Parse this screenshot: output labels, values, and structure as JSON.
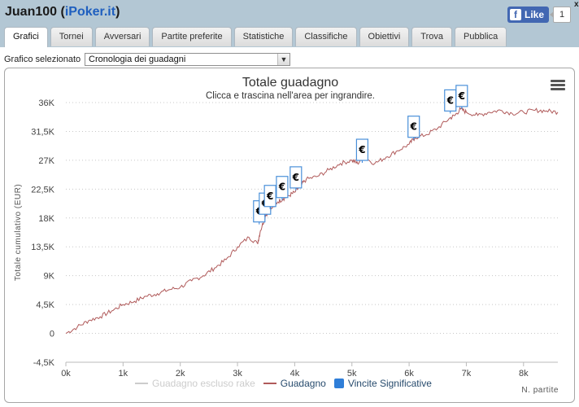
{
  "header": {
    "user": "Juan100",
    "site": "iPoker.it",
    "fb_like_label": "Like",
    "fb_like_count": "1",
    "close_label": "x"
  },
  "tabs": [
    {
      "label": "Grafici",
      "active": true
    },
    {
      "label": "Tornei"
    },
    {
      "label": "Avversari"
    },
    {
      "label": "Partite preferite"
    },
    {
      "label": "Statistiche"
    },
    {
      "label": "Classifiche"
    },
    {
      "label": "Obiettivi"
    },
    {
      "label": "Trova"
    },
    {
      "label": "Pubblica"
    }
  ],
  "selector": {
    "label": "Grafico selezionato",
    "value": "Cronologia dei guadagni"
  },
  "icons": {
    "menu": "hamburger-menu-icon",
    "flag": "euro-flag-icon",
    "dropdown": "chevron-down-icon",
    "facebook": "facebook-logo-icon"
  },
  "chart_data": {
    "type": "line",
    "title": "Totale guadagno",
    "subtitle": "Clicca e trascina nell'area per ingrandire.",
    "ylabel": "Totale cumulativo (EUR)",
    "xlabel": "N. partite",
    "xlim": [
      0,
      8600
    ],
    "ylim": [
      -4500,
      36000
    ],
    "x_ticks": [
      "0k",
      "1k",
      "2k",
      "3k",
      "4k",
      "5k",
      "6k",
      "7k",
      "8k"
    ],
    "y_ticks": [
      "36K",
      "31,5K",
      "27K",
      "22,5K",
      "18K",
      "13,5K",
      "9K",
      "4,5K",
      "0",
      "-4,5K"
    ],
    "grid": "horizontal dotted",
    "legend_position": "bottom",
    "series": [
      {
        "name": "Guadagno escluso rake",
        "visible": false,
        "color": "#cccccc",
        "points": []
      },
      {
        "name": "Guadagno",
        "visible": true,
        "color": "#b05a5a",
        "points": [
          [
            0,
            0
          ],
          [
            200,
            1000
          ],
          [
            400,
            2000
          ],
          [
            600,
            2600
          ],
          [
            800,
            3500
          ],
          [
            1000,
            4500
          ],
          [
            1200,
            5000
          ],
          [
            1400,
            5800
          ],
          [
            1600,
            6200
          ],
          [
            1800,
            6800
          ],
          [
            2000,
            7200
          ],
          [
            2200,
            8200
          ],
          [
            2400,
            9000
          ],
          [
            2600,
            10200
          ],
          [
            2800,
            11500
          ],
          [
            3000,
            13500
          ],
          [
            3200,
            15000
          ],
          [
            3350,
            14000
          ],
          [
            3400,
            16000
          ],
          [
            3500,
            18500
          ],
          [
            3600,
            19500
          ],
          [
            3700,
            20500
          ],
          [
            3800,
            21000
          ],
          [
            3900,
            21500
          ],
          [
            4000,
            22000
          ],
          [
            4100,
            23000
          ],
          [
            4200,
            24000
          ],
          [
            4400,
            24500
          ],
          [
            4600,
            25500
          ],
          [
            4800,
            26500
          ],
          [
            5000,
            27000
          ],
          [
            5100,
            26500
          ],
          [
            5200,
            27500
          ],
          [
            5400,
            26500
          ],
          [
            5600,
            27500
          ],
          [
            5800,
            28500
          ],
          [
            6000,
            29500
          ],
          [
            6100,
            30500
          ],
          [
            6300,
            31000
          ],
          [
            6500,
            32000
          ],
          [
            6700,
            33500
          ],
          [
            6800,
            34000
          ],
          [
            6900,
            35000
          ],
          [
            7000,
            34500
          ],
          [
            7200,
            34000
          ],
          [
            7400,
            34500
          ],
          [
            7600,
            34800
          ],
          [
            7800,
            34300
          ],
          [
            8000,
            34500
          ],
          [
            8200,
            34800
          ],
          [
            8400,
            34700
          ],
          [
            8600,
            34500
          ]
        ]
      },
      {
        "name": "Vincite Significative",
        "visible": true,
        "color": "#2f7ed8",
        "flags": [
          {
            "x": 3380,
            "y": 17000,
            "label": "€"
          },
          {
            "x": 3480,
            "y": 18200,
            "label": "€"
          },
          {
            "x": 3570,
            "y": 19400,
            "label": "€"
          },
          {
            "x": 3780,
            "y": 20800,
            "label": "€"
          },
          {
            "x": 4020,
            "y": 22300,
            "label": "€"
          },
          {
            "x": 5180,
            "y": 26600,
            "label": "€"
          },
          {
            "x": 6080,
            "y": 30200,
            "label": "€"
          },
          {
            "x": 6720,
            "y": 34300,
            "label": "€"
          },
          {
            "x": 6920,
            "y": 35000,
            "label": "€"
          }
        ]
      }
    ]
  }
}
